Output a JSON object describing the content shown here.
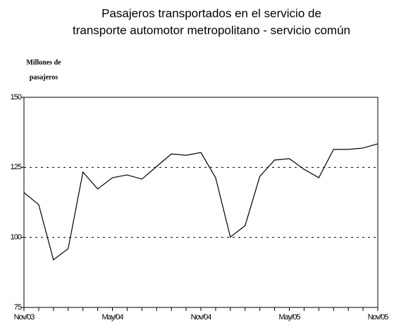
{
  "chart_data": {
    "type": "line",
    "title": [
      "Pasajeros transportados en el servicio de",
      "transporte automotor metropolitano - servicio común"
    ],
    "y_label": [
      "Millones de",
      "pasajeros"
    ],
    "categories": [
      "Nov/03",
      null,
      null,
      null,
      null,
      null,
      "May/04",
      null,
      null,
      null,
      null,
      null,
      "Nov/04",
      null,
      null,
      null,
      null,
      null,
      "May/05",
      null,
      null,
      null,
      null,
      null,
      "Nov/05"
    ],
    "series": [
      {
        "color": "#000000",
        "values": [
          116,
          111.7,
          92,
          96,
          123.3,
          117.3,
          121.3,
          122.3,
          120.8,
          125.3,
          129.8,
          129.3,
          130.3,
          121.3,
          100.1,
          104.2,
          121.8,
          127.6,
          128.1,
          124.3,
          121.3,
          131.4,
          131.4,
          131.9,
          133.4
        ]
      }
    ],
    "ylim": [
      75,
      150
    ],
    "yticks": [
      75,
      100,
      125,
      150
    ],
    "grid": true
  }
}
